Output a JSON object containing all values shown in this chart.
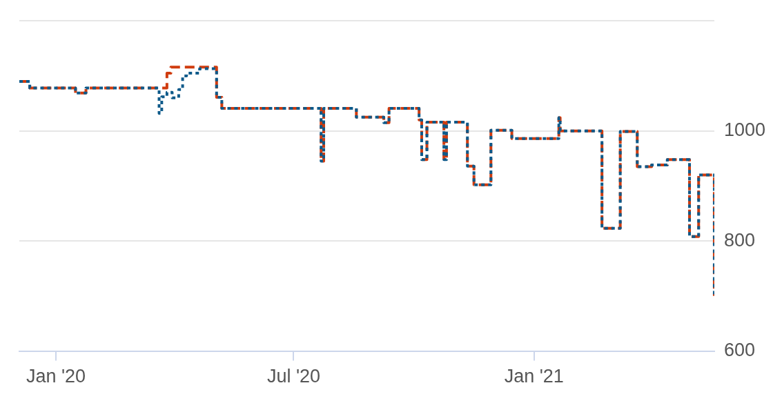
{
  "chart_data": {
    "type": "step",
    "xlim": [
      "2019-12-04",
      "2021-05-19"
    ],
    "xticks": [
      {
        "value": "2020-01-01",
        "label": "Jan '20"
      },
      {
        "value": "2020-07-01",
        "label": "Jul '20"
      },
      {
        "value": "2021-01-01",
        "label": "Jan '21"
      }
    ],
    "ylim": [
      600,
      1200
    ],
    "yticks": [
      600,
      800,
      1000,
      {
        "value": 1200,
        "label": null
      }
    ],
    "grid": "y",
    "legend": false,
    "series": [
      {
        "color": "#0e5a8a",
        "line_style": "dotted",
        "x": [
          "2019-12-04",
          "2019-12-12",
          "2020-01-16",
          "2020-01-24",
          "2020-03-20",
          "2020-03-22",
          "2020-03-26",
          "2020-03-30",
          "2020-04-04",
          "2020-04-07",
          "2020-04-10",
          "2020-04-20",
          "2020-05-03",
          "2020-05-07",
          "2020-07-22",
          "2020-07-24",
          "2020-08-18",
          "2020-09-08",
          "2020-09-12",
          "2020-10-05",
          "2020-10-07",
          "2020-10-11",
          "2020-10-24",
          "2020-10-26",
          "2020-11-11",
          "2020-11-16",
          "2020-11-29",
          "2020-12-15",
          "2021-01-20",
          "2021-01-21",
          "2021-02-22",
          "2021-03-08",
          "2021-03-21",
          "2021-04-01",
          "2021-04-13",
          "2021-04-30",
          "2021-05-07",
          "2021-05-19"
        ],
        "values": [
          1090,
          1078,
          1069,
          1078,
          1032,
          1062,
          1070,
          1060,
          1075,
          1100,
          1105,
          1113,
          1061,
          1041,
          945,
          1041,
          1025,
          1015,
          1041,
          1020,
          948,
          1016,
          948,
          1016,
          936,
          902,
          1001,
          986,
          1024,
          1000,
          823,
          999,
          935,
          938,
          948,
          808,
          920,
          700
        ]
      },
      {
        "color": "#d03c0f",
        "line_style": "dashed",
        "x": [
          "2019-12-04",
          "2019-12-12",
          "2020-01-16",
          "2020-01-24",
          "2020-03-26",
          "2020-03-29",
          "2020-05-03",
          "2020-05-07",
          "2020-07-22",
          "2020-07-24",
          "2020-08-18",
          "2020-09-08",
          "2020-09-12",
          "2020-10-05",
          "2020-10-07",
          "2020-10-11",
          "2020-10-24",
          "2020-10-26",
          "2020-11-11",
          "2020-11-16",
          "2020-11-29",
          "2020-12-15",
          "2021-01-20",
          "2021-01-21",
          "2021-02-22",
          "2021-03-08",
          "2021-03-21",
          "2021-04-01",
          "2021-04-13",
          "2021-04-30",
          "2021-05-07",
          "2021-05-19"
        ],
        "values": [
          1090,
          1078,
          1069,
          1078,
          1105,
          1116,
          1061,
          1041,
          945,
          1041,
          1025,
          1015,
          1041,
          1020,
          948,
          1016,
          948,
          1016,
          936,
          902,
          1001,
          986,
          1024,
          1000,
          823,
          999,
          935,
          938,
          948,
          808,
          920,
          700
        ]
      }
    ]
  }
}
